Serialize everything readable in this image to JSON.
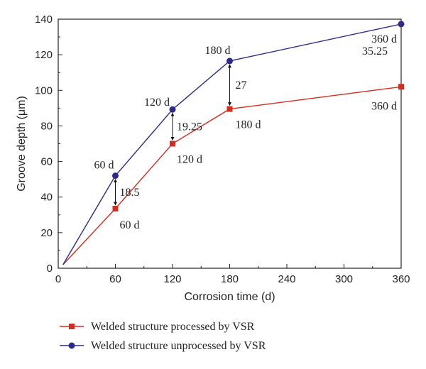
{
  "chart_data": {
    "type": "line",
    "title": "",
    "xlabel": "Corrosion time (d)",
    "ylabel": "Groove depth (μm)",
    "xlim": [
      0,
      360
    ],
    "ylim": [
      0,
      140
    ],
    "x_ticks": [
      0,
      60,
      120,
      180,
      240,
      300,
      360
    ],
    "y_ticks": [
      0,
      20,
      40,
      60,
      80,
      100,
      120,
      140
    ],
    "grid": false,
    "legend_position": "bottom",
    "series": [
      {
        "name": "Welded structure processed by VSR",
        "color": "#d62b1f",
        "marker": "square",
        "x": [
          5,
          60,
          120,
          180,
          360
        ],
        "y": [
          2,
          33.5,
          70,
          89.5,
          102
        ]
      },
      {
        "name": "Welded structure unprocessed by VSR",
        "color": "#2e2a8c",
        "marker": "circle",
        "x": [
          5,
          60,
          120,
          180,
          360
        ],
        "y": [
          2,
          52,
          89.25,
          116.5,
          137.25
        ]
      }
    ],
    "point_labels": [
      {
        "text": "60 d",
        "x": 60,
        "y": 52,
        "series": 1
      },
      {
        "text": "120 d",
        "x": 120,
        "y": 89.25,
        "series": 1
      },
      {
        "text": "180 d",
        "x": 180,
        "y": 116.5,
        "series": 1
      },
      {
        "text": "360 d",
        "x": 360,
        "y": 137.25,
        "series": 1
      },
      {
        "text": "60 d",
        "x": 60,
        "y": 33.5,
        "series": 0
      },
      {
        "text": "120 d",
        "x": 120,
        "y": 70,
        "series": 0
      },
      {
        "text": "180 d",
        "x": 180,
        "y": 89.5,
        "series": 0
      },
      {
        "text": "360 d",
        "x": 360,
        "y": 102,
        "series": 0
      }
    ],
    "differences": [
      {
        "text": "18.5",
        "x": 60,
        "y_low": 33.5,
        "y_high": 52
      },
      {
        "text": "19.25",
        "x": 120,
        "y_low": 70,
        "y_high": 89.25
      },
      {
        "text": "27",
        "x": 180,
        "y_low": 89.5,
        "y_high": 116.5
      },
      {
        "text": "35.25",
        "x": 360,
        "y_low": 102,
        "y_high": 137.25
      }
    ]
  }
}
